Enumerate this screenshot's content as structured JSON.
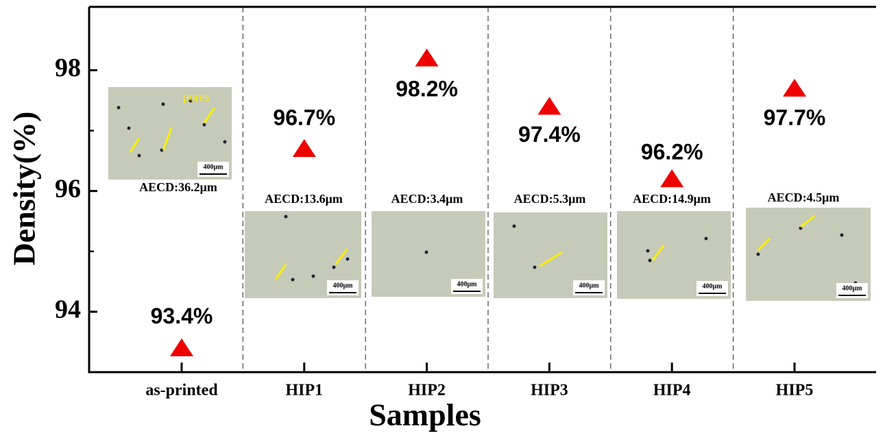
{
  "chart_data": {
    "type": "scatter",
    "x_label": "Samples",
    "y_label": "Density(%)",
    "categories": [
      "as-printed",
      "HIP1",
      "HIP2",
      "HIP3",
      "HIP4",
      "HIP5"
    ],
    "values": [
      93.4,
      96.7,
      98.2,
      97.4,
      96.2,
      97.7
    ],
    "value_labels": [
      "93.4%",
      "96.7%",
      "98.2%",
      "97.4%",
      "96.2%",
      "97.7%"
    ],
    "color": "#ee0000",
    "ylim": [
      93,
      99.05
    ],
    "yticks": [
      94,
      96,
      98
    ],
    "minor_yticks": [
      95,
      97
    ],
    "insets": [
      {
        "label": "AECD:36.2μm",
        "scale_bar": "400μm",
        "annotation": "pores"
      },
      {
        "label": "AECD:13.6μm",
        "scale_bar": "400μm"
      },
      {
        "label": "AECD:3.4μm",
        "scale_bar": "400μm"
      },
      {
        "label": "AECD:5.3μm",
        "scale_bar": "400μm"
      },
      {
        "label": "AECD:14.9μm",
        "scale_bar": "400μm"
      },
      {
        "label": "AECD:4.5μm",
        "scale_bar": "400μm"
      }
    ]
  }
}
